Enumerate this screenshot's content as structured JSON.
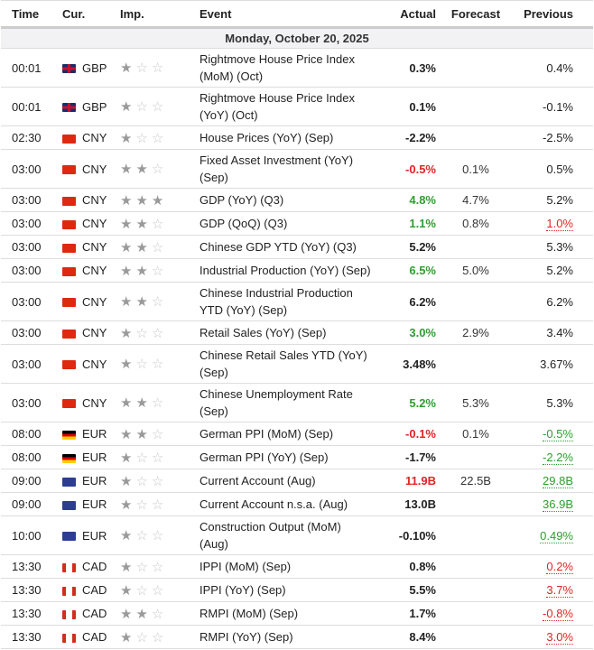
{
  "headers": {
    "time": "Time",
    "cur": "Cur.",
    "imp": "Imp.",
    "event": "Event",
    "actual": "Actual",
    "forecast": "Forecast",
    "previous": "Previous"
  },
  "date": "Monday, October 20, 2025",
  "rows": [
    {
      "time": "00:01",
      "flag": "GBP",
      "cur": "GBP",
      "imp": 1,
      "event": "Rightmove House Price Index (MoM) (Oct)",
      "actual": "0.3%",
      "ac": "",
      "forecast": "",
      "previous": "0.4%",
      "pc": "",
      "tall": true
    },
    {
      "time": "00:01",
      "flag": "GBP",
      "cur": "GBP",
      "imp": 1,
      "event": "Rightmove House Price Index (YoY) (Oct)",
      "actual": "0.1%",
      "ac": "",
      "forecast": "",
      "previous": "-0.1%",
      "pc": "",
      "tall": true
    },
    {
      "time": "02:30",
      "flag": "CNY",
      "cur": "CNY",
      "imp": 1,
      "event": "House Prices (YoY) (Sep)",
      "actual": "-2.2%",
      "ac": "",
      "forecast": "",
      "previous": "-2.5%",
      "pc": ""
    },
    {
      "time": "03:00",
      "flag": "CNY",
      "cur": "CNY",
      "imp": 2,
      "event": "Fixed Asset Investment (YoY) (Sep)",
      "actual": "-0.5%",
      "ac": "red",
      "forecast": "0.1%",
      "previous": "0.5%",
      "pc": "",
      "tall": true
    },
    {
      "time": "03:00",
      "flag": "CNY",
      "cur": "CNY",
      "imp": 3,
      "event": "GDP (YoY) (Q3)",
      "actual": "4.8%",
      "ac": "green",
      "forecast": "4.7%",
      "previous": "5.2%",
      "pc": ""
    },
    {
      "time": "03:00",
      "flag": "CNY",
      "cur": "CNY",
      "imp": 2,
      "event": "GDP (QoQ) (Q3)",
      "actual": "1.1%",
      "ac": "green",
      "forecast": "0.8%",
      "previous": "1.0%",
      "pc": "red"
    },
    {
      "time": "03:00",
      "flag": "CNY",
      "cur": "CNY",
      "imp": 2,
      "event": "Chinese GDP YTD (YoY) (Q3)",
      "actual": "5.2%",
      "ac": "",
      "forecast": "",
      "previous": "5.3%",
      "pc": ""
    },
    {
      "time": "03:00",
      "flag": "CNY",
      "cur": "CNY",
      "imp": 2,
      "event": "Industrial Production (YoY) (Sep)",
      "actual": "6.5%",
      "ac": "green",
      "forecast": "5.0%",
      "previous": "5.2%",
      "pc": ""
    },
    {
      "time": "03:00",
      "flag": "CNY",
      "cur": "CNY",
      "imp": 2,
      "event": "Chinese Industrial Production YTD (YoY) (Sep)",
      "actual": "6.2%",
      "ac": "",
      "forecast": "",
      "previous": "6.2%",
      "pc": "",
      "tall": true
    },
    {
      "time": "03:00",
      "flag": "CNY",
      "cur": "CNY",
      "imp": 1,
      "event": "Retail Sales (YoY) (Sep)",
      "actual": "3.0%",
      "ac": "green",
      "forecast": "2.9%",
      "previous": "3.4%",
      "pc": ""
    },
    {
      "time": "03:00",
      "flag": "CNY",
      "cur": "CNY",
      "imp": 1,
      "event": "Chinese Retail Sales YTD (YoY) (Sep)",
      "actual": "3.48%",
      "ac": "",
      "forecast": "",
      "previous": "3.67%",
      "pc": "",
      "tall": true
    },
    {
      "time": "03:00",
      "flag": "CNY",
      "cur": "CNY",
      "imp": 2,
      "event": "Chinese Unemployment Rate (Sep)",
      "actual": "5.2%",
      "ac": "green",
      "forecast": "5.3%",
      "previous": "5.3%",
      "pc": "",
      "tall": true
    },
    {
      "time": "08:00",
      "flag": "DE",
      "cur": "EUR",
      "imp": 2,
      "event": "German PPI (MoM) (Sep)",
      "actual": "-0.1%",
      "ac": "red",
      "forecast": "0.1%",
      "previous": "-0.5%",
      "pc": "green"
    },
    {
      "time": "08:00",
      "flag": "DE",
      "cur": "EUR",
      "imp": 1,
      "event": "German PPI (YoY) (Sep)",
      "actual": "-1.7%",
      "ac": "",
      "forecast": "",
      "previous": "-2.2%",
      "pc": "green"
    },
    {
      "time": "09:00",
      "flag": "EUR",
      "cur": "EUR",
      "imp": 1,
      "event": "Current Account (Aug)",
      "actual": "11.9B",
      "ac": "red",
      "forecast": "22.5B",
      "previous": "29.8B",
      "pc": "green"
    },
    {
      "time": "09:00",
      "flag": "EUR",
      "cur": "EUR",
      "imp": 1,
      "event": "Current Account n.s.a. (Aug)",
      "actual": "13.0B",
      "ac": "",
      "forecast": "",
      "previous": "36.9B",
      "pc": "green"
    },
    {
      "time": "10:00",
      "flag": "EUR",
      "cur": "EUR",
      "imp": 1,
      "event": "Construction Output (MoM) (Aug)",
      "actual": "-0.10%",
      "ac": "",
      "forecast": "",
      "previous": "0.49%",
      "pc": "green",
      "tall": true
    },
    {
      "time": "13:30",
      "flag": "CAD",
      "cur": "CAD",
      "imp": 1,
      "event": "IPPI (MoM) (Sep)",
      "actual": "0.8%",
      "ac": "",
      "forecast": "",
      "previous": "0.2%",
      "pc": "red"
    },
    {
      "time": "13:30",
      "flag": "CAD",
      "cur": "CAD",
      "imp": 1,
      "event": "IPPI (YoY) (Sep)",
      "actual": "5.5%",
      "ac": "",
      "forecast": "",
      "previous": "3.7%",
      "pc": "red"
    },
    {
      "time": "13:30",
      "flag": "CAD",
      "cur": "CAD",
      "imp": 2,
      "event": "RMPI (MoM) (Sep)",
      "actual": "1.7%",
      "ac": "",
      "forecast": "",
      "previous": "-0.8%",
      "pc": "red"
    },
    {
      "time": "13:30",
      "flag": "CAD",
      "cur": "CAD",
      "imp": 1,
      "event": "RMPI (YoY) (Sep)",
      "actual": "8.4%",
      "ac": "",
      "forecast": "",
      "previous": "3.0%",
      "pc": "red"
    }
  ]
}
